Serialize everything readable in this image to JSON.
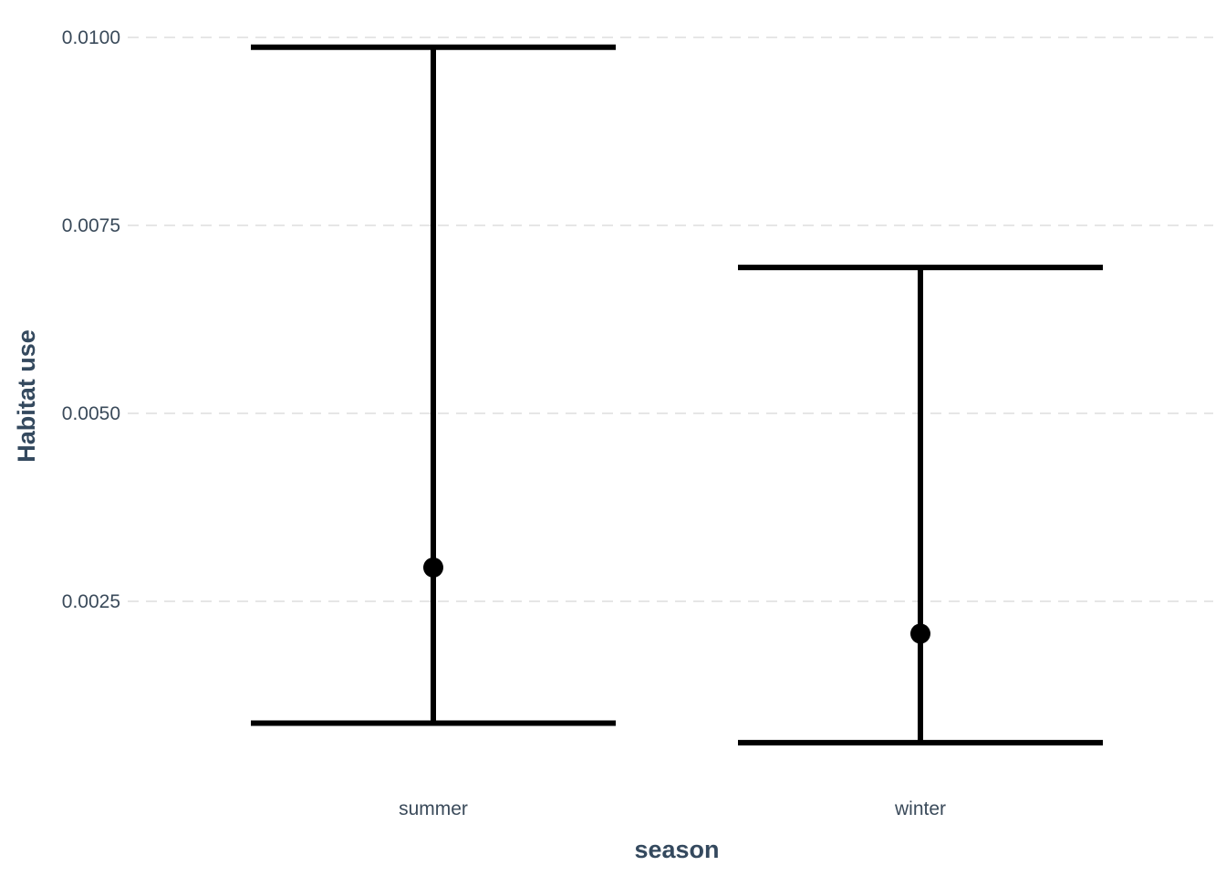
{
  "chart_data": {
    "type": "errorbar",
    "xlabel": "season",
    "ylabel": "Habitat use",
    "ylim": [
      0.0,
      0.0101
    ],
    "yticks": [
      0.0025,
      0.005,
      0.0075,
      0.01
    ],
    "ytick_labels": [
      "0.0025",
      "0.0050",
      "0.0075",
      "0.0100"
    ],
    "categories": [
      "summer",
      "winter"
    ],
    "points": [
      {
        "category": "summer",
        "estimate": 0.00295,
        "lower": 0.00088,
        "upper": 0.00987
      },
      {
        "category": "winter",
        "estimate": 0.00207,
        "lower": 0.00062,
        "upper": 0.00694
      }
    ],
    "grid": "horizontal-dashed",
    "legend": "none"
  }
}
